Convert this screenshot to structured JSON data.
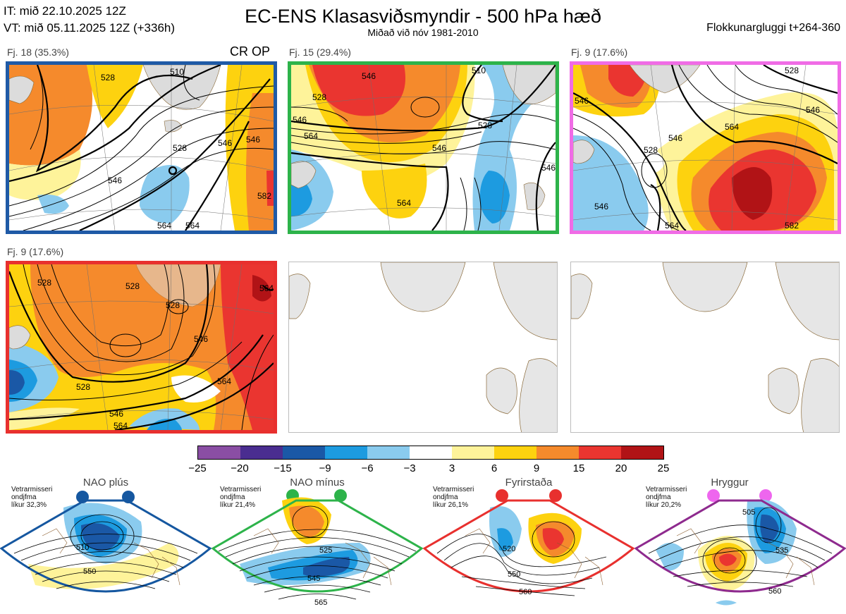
{
  "header": {
    "init_time": "IT: mið 22.10.2025 12Z",
    "valid_time": "VT: mið 05.11.2025 12Z  (+336h)",
    "title": "EC-ENS Klasasviðsmyndir - 500 hPa hæð",
    "subtitle": "Miðað við nóv 1981-2010",
    "window": "Flokkunargluggi t+264-360"
  },
  "panels": [
    {
      "label": "Fj. 18 (35.3%)",
      "extra": "CR OP",
      "frame_color": "#1f5aa6",
      "contours": [
        "510",
        "528",
        "528",
        "546",
        "546",
        "546",
        "564",
        "564",
        "582"
      ]
    },
    {
      "label": "Fj. 15 (29.4%)",
      "frame_color": "#2db34a",
      "contours": [
        "528",
        "546",
        "546",
        "564",
        "564",
        "528",
        "546",
        "510",
        "546"
      ]
    },
    {
      "label": "Fj. 9 (17.6%)",
      "frame_color": "#f06ce6",
      "contours": [
        "546",
        "528",
        "546",
        "564",
        "582",
        "528",
        "546",
        "546",
        "564"
      ]
    },
    {
      "label": "Fj. 9 (17.6%)",
      "frame_color": "#e8302e",
      "contours": [
        "528",
        "528",
        "528",
        "546",
        "564",
        "546",
        "564",
        "528",
        "564"
      ]
    }
  ],
  "colorbar": {
    "ticks": [
      "−25",
      "−20",
      "−15",
      "−9",
      "−6",
      "−3",
      "3",
      "6",
      "9",
      "15",
      "20",
      "25"
    ],
    "colors": [
      "#8a4ea4",
      "#4a2d90",
      "#1a58a6",
      "#1d9be0",
      "#8acbee",
      "#ffffff",
      "#fef39a",
      "#fdd20f",
      "#f58a2c",
      "#ea3530",
      "#b11316"
    ]
  },
  "regimes": [
    {
      "title": "NAO plús",
      "note": [
        "Vetrarmisseri",
        "ondjfma",
        "líkur 32,3%"
      ],
      "color": "#1557a0",
      "contours": [
        "510",
        "550"
      ]
    },
    {
      "title": "NAO mínus",
      "note": [
        "Vetrarmisseri",
        "ondjfma",
        "líkur 21,4%"
      ],
      "color": "#2db34a",
      "contours": [
        "525",
        "545",
        "565"
      ]
    },
    {
      "title": "Fyrirstaða",
      "note": [
        "Vetrarmisseri",
        "ondjfma",
        "líkur 26,1%"
      ],
      "color": "#e8302e",
      "contours": [
        "520",
        "550",
        "560"
      ]
    },
    {
      "title": "Hryggur",
      "note": [
        "Vetrarmisseri",
        "ondjfma",
        "líkur 20,2%"
      ],
      "color": "#8e2a8e",
      "marker_color": "#ee66ee",
      "contours": [
        "505",
        "535",
        "560"
      ]
    }
  ]
}
